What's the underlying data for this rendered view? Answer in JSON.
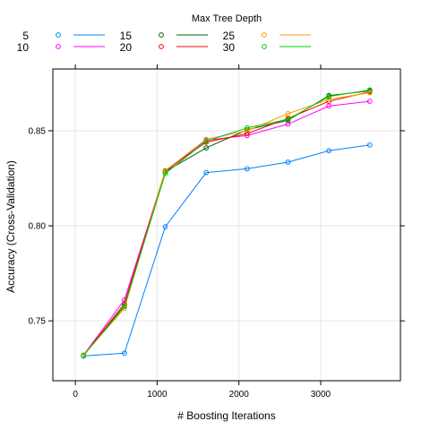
{
  "chart_data": {
    "type": "line",
    "xlabel": "# Boosting Iterations",
    "ylabel": "Accuracy (Cross-Validation)",
    "xlim": [
      -275,
      3975
    ],
    "ylim": [
      0.7185,
      0.8825
    ],
    "xticks": [
      0,
      1000,
      2000,
      3000
    ],
    "yticks": [
      0.75,
      0.8,
      0.85
    ],
    "xtick_labels": [
      "0",
      "1000",
      "2000",
      "3000"
    ],
    "ytick_labels": [
      "0.75",
      "0.80",
      "0.85"
    ],
    "grid": true,
    "legend": {
      "title": "Max Tree Depth",
      "placement": "top"
    },
    "x": [
      100,
      600,
      1100,
      1600,
      2100,
      2600,
      3100,
      3600
    ],
    "series": [
      {
        "name": "5",
        "color": "#0080ff",
        "values": [
          0.7315,
          0.733,
          0.7995,
          0.828,
          0.83,
          0.8335,
          0.8395,
          0.8425
        ]
      },
      {
        "name": "10",
        "color": "#ff00ff",
        "values": [
          0.732,
          0.761,
          0.8285,
          0.845,
          0.8475,
          0.8535,
          0.863,
          0.8655
        ]
      },
      {
        "name": "15",
        "color": "#006400",
        "values": [
          0.7318,
          0.758,
          0.8285,
          0.841,
          0.8505,
          0.8555,
          0.8685,
          0.871
        ]
      },
      {
        "name": "20",
        "color": "#ff0000",
        "values": [
          0.7319,
          0.759,
          0.829,
          0.844,
          0.8485,
          0.8565,
          0.8655,
          0.8705
        ]
      },
      {
        "name": "25",
        "color": "#ff9900",
        "values": [
          0.7321,
          0.7565,
          0.829,
          0.8455,
          0.85,
          0.859,
          0.8665,
          0.87
        ]
      },
      {
        "name": "30",
        "color": "#00cc00",
        "values": [
          0.7317,
          0.7575,
          0.8275,
          0.8445,
          0.8515,
          0.856,
          0.868,
          0.8715
        ]
      }
    ]
  }
}
